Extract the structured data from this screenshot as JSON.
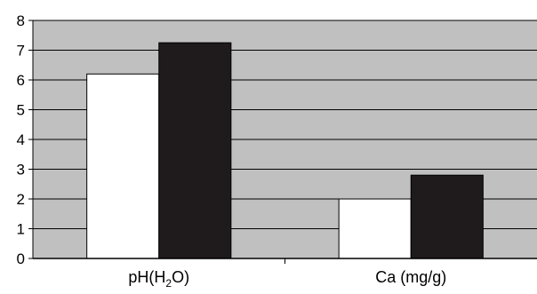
{
  "chart_data": {
    "type": "bar",
    "categories": [
      {
        "base": "pH(H",
        "sub": "2",
        "rest": "O)"
      },
      {
        "base": "Ca (mg/g)",
        "sub": "",
        "rest": ""
      }
    ],
    "series": [
      {
        "values": [
          6.2,
          2.0
        ],
        "color": "#ffffff"
      },
      {
        "values": [
          7.25,
          2.8
        ],
        "color": "#1f1a1b"
      }
    ],
    "ylim": [
      0,
      8
    ],
    "yticks": [
      "0",
      "1",
      "2",
      "3",
      "4",
      "5",
      "6",
      "7",
      "8"
    ],
    "grid": true,
    "plot_background": "#c0c0c0",
    "legend": "none",
    "title": "",
    "xlabel": "",
    "ylabel": ""
  }
}
